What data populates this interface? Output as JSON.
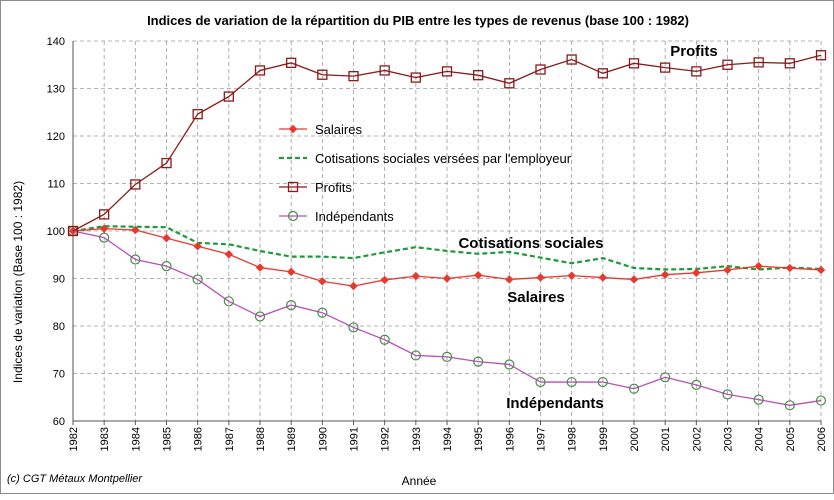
{
  "credit": "(c) CGT Métaux Montpellier",
  "chart_data": {
    "type": "line",
    "title": "Indices de variation de la répartition du PIB entre les types de revenus (base 100 : 1982)",
    "xlabel": "Année",
    "ylabel": "Indices de variation (Base 100 : 1982)",
    "ylim": [
      60,
      140
    ],
    "yticks": [
      60,
      70,
      80,
      90,
      100,
      110,
      120,
      130,
      140
    ],
    "grid": true,
    "legend_position": "center",
    "x": [
      1982,
      1983,
      1984,
      1985,
      1986,
      1987,
      1988,
      1989,
      1990,
      1991,
      1992,
      1993,
      1994,
      1995,
      1996,
      1997,
      1998,
      1999,
      2000,
      2001,
      2002,
      2003,
      2004,
      2005,
      2006
    ],
    "series": [
      {
        "name": "Salaires",
        "color": "#e8392f",
        "marker": "diamond",
        "dash": false,
        "label": "Salaires",
        "values": [
          100,
          100.5,
          100.2,
          98.5,
          96.8,
          95.1,
          92.3,
          91.4,
          89.4,
          88.4,
          89.7,
          90.5,
          90.0,
          90.7,
          89.8,
          90.2,
          90.6,
          90.2,
          89.8,
          90.8,
          91.2,
          91.8,
          92.6,
          92.2,
          91.8
        ]
      },
      {
        "name": "Cotisations sociales versées par l'employeur",
        "color": "#1e9a3a",
        "marker": "none",
        "dash": true,
        "label": "Cotisations sociales",
        "values": [
          100,
          101.0,
          100.9,
          100.8,
          97.5,
          97.2,
          95.8,
          94.6,
          94.6,
          94.3,
          95.5,
          96.6,
          95.8,
          95.2,
          95.6,
          94.4,
          93.2,
          94.3,
          92.2,
          91.9,
          92.0,
          92.6,
          91.9,
          92.3,
          92.0
        ]
      },
      {
        "name": "Profits",
        "color": "#8b1a1a",
        "marker": "square",
        "dash": false,
        "label": "Profits",
        "values": [
          100,
          103.5,
          109.8,
          114.3,
          124.6,
          128.3,
          133.8,
          135.4,
          132.9,
          132.6,
          133.8,
          132.3,
          133.6,
          132.8,
          131.1,
          134.0,
          136.1,
          133.2,
          135.3,
          134.4,
          133.6,
          135.0,
          135.5,
          135.3,
          137.0
        ]
      },
      {
        "name": "Indépendants",
        "color": "#b84fb8",
        "marker": "circle",
        "dash": false,
        "label": "Indépendants",
        "values": [
          100,
          98.6,
          94.0,
          92.6,
          89.8,
          85.2,
          82.0,
          84.4,
          82.8,
          79.7,
          77.1,
          73.8,
          73.5,
          72.5,
          71.9,
          68.2,
          68.2,
          68.2,
          66.8,
          69.2,
          67.6,
          65.6,
          64.5,
          63.3,
          64.3
        ]
      }
    ]
  }
}
